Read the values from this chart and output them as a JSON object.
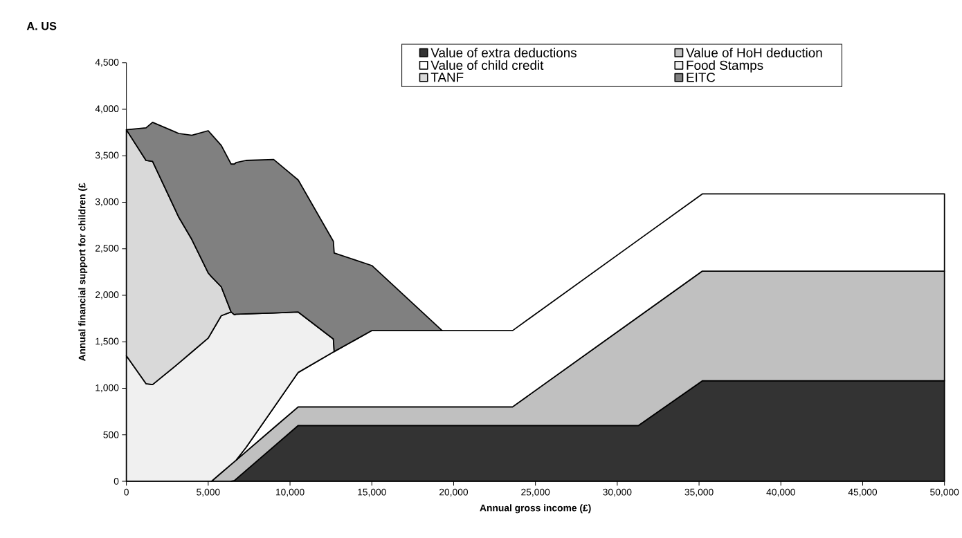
{
  "chart_data": {
    "type": "area",
    "stacked": true,
    "title": "A.  US",
    "xlabel": "Annual gross income (£)",
    "ylabel": "Annual financial support for children (£",
    "x": [
      0,
      1200,
      1600,
      3200,
      4000,
      5000,
      5200,
      5800,
      6400,
      6600,
      6700,
      7300,
      9000,
      10500,
      12650,
      12700,
      15000,
      19300,
      23600,
      31300,
      35200,
      50000
    ],
    "series": [
      {
        "name": "Value of extra deductions",
        "color": "#333333",
        "values": [
          null,
          null,
          null,
          null,
          null,
          null,
          null,
          null,
          0,
          8,
          23,
          114,
          372,
          600,
          600,
          600,
          600,
          600,
          600,
          600,
          1080,
          1080
        ]
      },
      {
        "name": "Value of HoH deduction",
        "color": "#c0c0c0",
        "values": [
          null,
          null,
          null,
          null,
          null,
          null,
          0,
          91,
          181,
          203,
          203,
          203,
          202,
          200,
          200,
          200,
          200,
          200,
          200,
          1170,
          1180,
          1180
        ]
      },
      {
        "name": "Value of child credit",
        "color": "#ffffff",
        "values": [
          null,
          null,
          null,
          null,
          null,
          null,
          null,
          null,
          null,
          null,
          0,
          43,
          216,
          370,
          590,
          595,
          820,
          820,
          820,
          826,
          830,
          830
        ]
      },
      {
        "name": "Food Stamps",
        "color": "#f0f0f0",
        "values": [
          1350,
          1050,
          1040,
          1270,
          1390,
          1540,
          1600,
          1690,
          1640,
          1580,
          1570,
          1440,
          1020,
          650,
          140,
          0,
          null,
          null,
          null,
          null,
          null,
          null
        ]
      },
      {
        "name": "TANF",
        "color": "#d9d9d9",
        "values": [
          2430,
          2400,
          2400,
          1570,
          1210,
          700,
          600,
          310,
          0,
          null,
          null,
          null,
          null,
          null,
          null,
          null,
          null,
          null,
          null,
          null,
          null,
          null
        ]
      },
      {
        "name": "EITC",
        "color": "#808080",
        "values": [
          0,
          350,
          420,
          900,
          1120,
          1530,
          1530,
          1520,
          1590,
          1620,
          1630,
          1650,
          1650,
          1420,
          1050,
          1060,
          700,
          0,
          null,
          null,
          null,
          null
        ]
      }
    ],
    "xlim": [
      0,
      50000
    ],
    "ylim": [
      0,
      4500
    ],
    "xticks": [
      0,
      {
        "value": 5000,
        "label": "5,000"
      },
      {
        "value": 10000,
        "label": "10,000"
      },
      {
        "value": 15000,
        "label": "15,000"
      },
      {
        "value": 20000,
        "label": "20,000"
      },
      {
        "value": 25000,
        "label": "25,000"
      },
      {
        "value": 30000,
        "label": "30,000"
      },
      {
        "value": 35000,
        "label": "35,000"
      },
      {
        "value": 40000,
        "label": "40,000"
      },
      {
        "value": 45000,
        "label": "45,000"
      },
      {
        "value": 50000,
        "label": "50,000"
      }
    ],
    "yticks": [
      0,
      500,
      {
        "value": 1000,
        "label": "1,000"
      },
      {
        "value": 1500,
        "label": "1,500"
      },
      {
        "value": 2000,
        "label": "2,000"
      },
      {
        "value": 2500,
        "label": "2,500"
      },
      {
        "value": 3000,
        "label": "3,000"
      },
      {
        "value": 3500,
        "label": "3,500"
      },
      {
        "value": 4000,
        "label": "4,000"
      },
      {
        "value": 4500,
        "label": "4,500"
      }
    ],
    "legend": "top right",
    "grid": false
  }
}
